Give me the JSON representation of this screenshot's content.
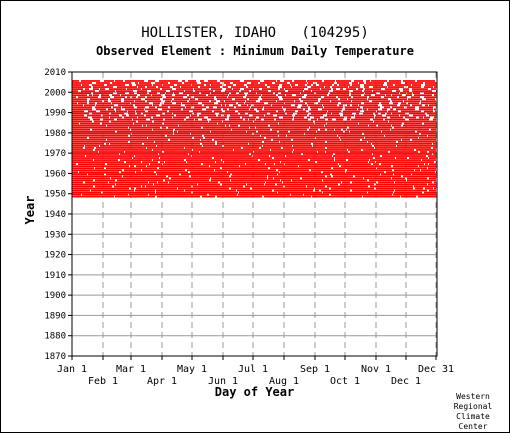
{
  "chart_data": {
    "type": "scatter",
    "title": "HOLLISTER, IDAHO   (104295)",
    "subtitle": "Observed Element : Minimum Daily Temperature",
    "xlabel": "Day of Year",
    "ylabel": "Year",
    "xlim": [
      1,
      366
    ],
    "ylim": [
      1870,
      2010
    ],
    "y_ticks": [
      1870,
      1880,
      1890,
      1900,
      1910,
      1920,
      1930,
      1940,
      1950,
      1960,
      1970,
      1980,
      1990,
      2000,
      2010
    ],
    "x_ticks_upper": [
      {
        "label": "Jan 1",
        "day": 1
      },
      {
        "label": "Mar 1",
        "day": 60
      },
      {
        "label": "May 1",
        "day": 121
      },
      {
        "label": "Jul 1",
        "day": 182
      },
      {
        "label": "Sep 1",
        "day": 244
      },
      {
        "label": "Nov 1",
        "day": 305
      },
      {
        "label": "Dec 31",
        "day": 365
      }
    ],
    "x_ticks_lower": [
      {
        "label": "Feb 1",
        "day": 32
      },
      {
        "label": "Apr 1",
        "day": 91
      },
      {
        "label": "Jun 1",
        "day": 152
      },
      {
        "label": "Aug 1",
        "day": 213
      },
      {
        "label": "Oct 1",
        "day": 274
      },
      {
        "label": "Dec 1",
        "day": 335
      }
    ],
    "grid": true,
    "series": [
      {
        "color": "#ff0000",
        "year_range": [
          1948,
          2005
        ],
        "day_range": [
          1,
          365
        ],
        "data_coverage": "near-complete daily record 1948-2005 with scattered missing days"
      }
    ],
    "colors": {
      "data": "#ff0000",
      "grid": "#999999",
      "frame": "#000000"
    }
  },
  "credit": {
    "line1": "Western",
    "line2": "Regional",
    "line3": "Climate",
    "line4": "Center"
  }
}
